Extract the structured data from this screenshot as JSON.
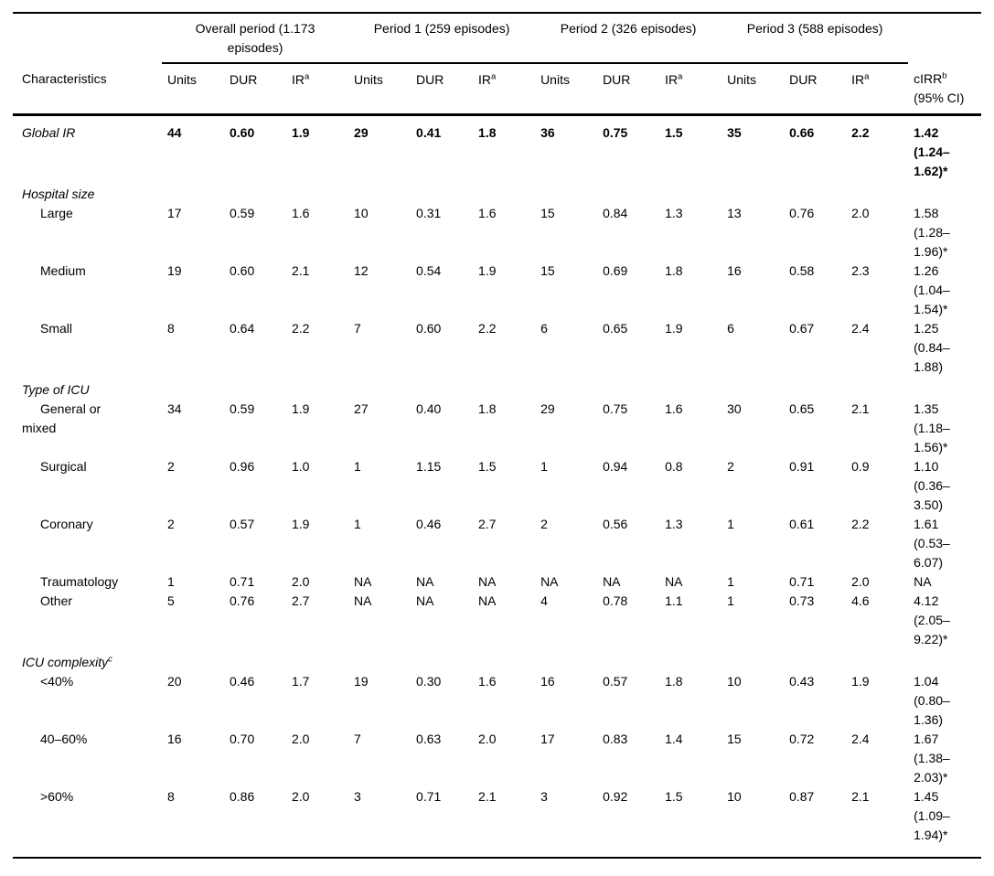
{
  "table": {
    "groups": [
      {
        "label": "Overall period (1.173\nepisodes)"
      },
      {
        "label": "Period 1 (259 episodes)"
      },
      {
        "label": "Period 2 (326 episodes)"
      },
      {
        "label": "Period 3 (588 episodes)"
      }
    ],
    "col_headers": {
      "characteristics": "Characteristics",
      "units": "Units",
      "dur": "DUR",
      "ir": "IR",
      "ir_sup": "a",
      "cirr": "cIRR",
      "cirr_sup": "b",
      "cirr_line2": "(95% CI)"
    },
    "rows": [
      {
        "type": "data",
        "first": true,
        "bold": true,
        "italic": true,
        "label": "Global IR",
        "values": [
          "44",
          "0.60",
          "1.9",
          "29",
          "0.41",
          "1.8",
          "36",
          "0.75",
          "1.5",
          "35",
          "0.66",
          "2.2"
        ],
        "cirr": "1.42\n(1.24–\n1.62)*"
      },
      {
        "type": "section",
        "label": "Hospital size"
      },
      {
        "type": "data",
        "indent": true,
        "label": "Large",
        "values": [
          "17",
          "0.59",
          "1.6",
          "10",
          "0.31",
          "1.6",
          "15",
          "0.84",
          "1.3",
          "13",
          "0.76",
          "2.0"
        ],
        "cirr": "1.58\n(1.28–\n1.96)*"
      },
      {
        "type": "data",
        "indent": true,
        "label": "Medium",
        "values": [
          "19",
          "0.60",
          "2.1",
          "12",
          "0.54",
          "1.9",
          "15",
          "0.69",
          "1.8",
          "16",
          "0.58",
          "2.3"
        ],
        "cirr": "1.26\n(1.04–\n1.54)*"
      },
      {
        "type": "data",
        "indent": true,
        "label": "Small",
        "values": [
          "8",
          "0.64",
          "2.2",
          "7",
          "0.60",
          "2.2",
          "6",
          "0.65",
          "1.9",
          "6",
          "0.67",
          "2.4"
        ],
        "cirr": "1.25\n(0.84–\n1.88)"
      },
      {
        "type": "section",
        "label": "Type of ICU"
      },
      {
        "type": "data",
        "indent": true,
        "label": "General or\nmixed",
        "values": [
          "34",
          "0.59",
          "1.9",
          "27",
          "0.40",
          "1.8",
          "29",
          "0.75",
          "1.6",
          "30",
          "0.65",
          "2.1"
        ],
        "cirr": "1.35\n(1.18–\n1.56)*"
      },
      {
        "type": "data",
        "indent": true,
        "label": "Surgical",
        "values": [
          "2",
          "0.96",
          "1.0",
          "1",
          "1.15",
          "1.5",
          "1",
          "0.94",
          "0.8",
          "2",
          "0.91",
          "0.9"
        ],
        "cirr": "1.10\n(0.36–\n3.50)"
      },
      {
        "type": "data",
        "indent": true,
        "label": "Coronary",
        "values": [
          "2",
          "0.57",
          "1.9",
          "1",
          "0.46",
          "2.7",
          "2",
          "0.56",
          "1.3",
          "1",
          "0.61",
          "2.2"
        ],
        "cirr": "1.61\n(0.53–\n6.07)"
      },
      {
        "type": "data",
        "indent": true,
        "label": "Traumatology",
        "values": [
          "1",
          "0.71",
          "2.0",
          "NA",
          "NA",
          "NA",
          "NA",
          "NA",
          "NA",
          "1",
          "0.71",
          "2.0"
        ],
        "cirr": "NA"
      },
      {
        "type": "data",
        "indent": true,
        "label": "Other",
        "values": [
          "5",
          "0.76",
          "2.7",
          "NA",
          "NA",
          "NA",
          "4",
          "0.78",
          "1.1",
          "1",
          "0.73",
          "4.6"
        ],
        "cirr": "4.12\n(2.05–\n9.22)*"
      },
      {
        "type": "section",
        "label": "ICU complexity",
        "sup": "c"
      },
      {
        "type": "data",
        "indent": true,
        "label": "<40%",
        "values": [
          "20",
          "0.46",
          "1.7",
          "19",
          "0.30",
          "1.6",
          "16",
          "0.57",
          "1.8",
          "10",
          "0.43",
          "1.9"
        ],
        "cirr": "1.04\n(0.80–\n1.36)"
      },
      {
        "type": "data",
        "indent": true,
        "label": "40–60%",
        "values": [
          "16",
          "0.70",
          "2.0",
          "7",
          "0.63",
          "2.0",
          "17",
          "0.83",
          "1.4",
          "15",
          "0.72",
          "2.4"
        ],
        "cirr": "1.67\n(1.38–\n2.03)*"
      },
      {
        "type": "data",
        "indent": true,
        "last": true,
        "label": ">60%",
        "values": [
          "8",
          "0.86",
          "2.0",
          "3",
          "0.71",
          "2.1",
          "3",
          "0.92",
          "1.5",
          "10",
          "0.87",
          "2.1"
        ],
        "cirr": "1.45\n(1.09–\n1.94)*"
      }
    ]
  }
}
